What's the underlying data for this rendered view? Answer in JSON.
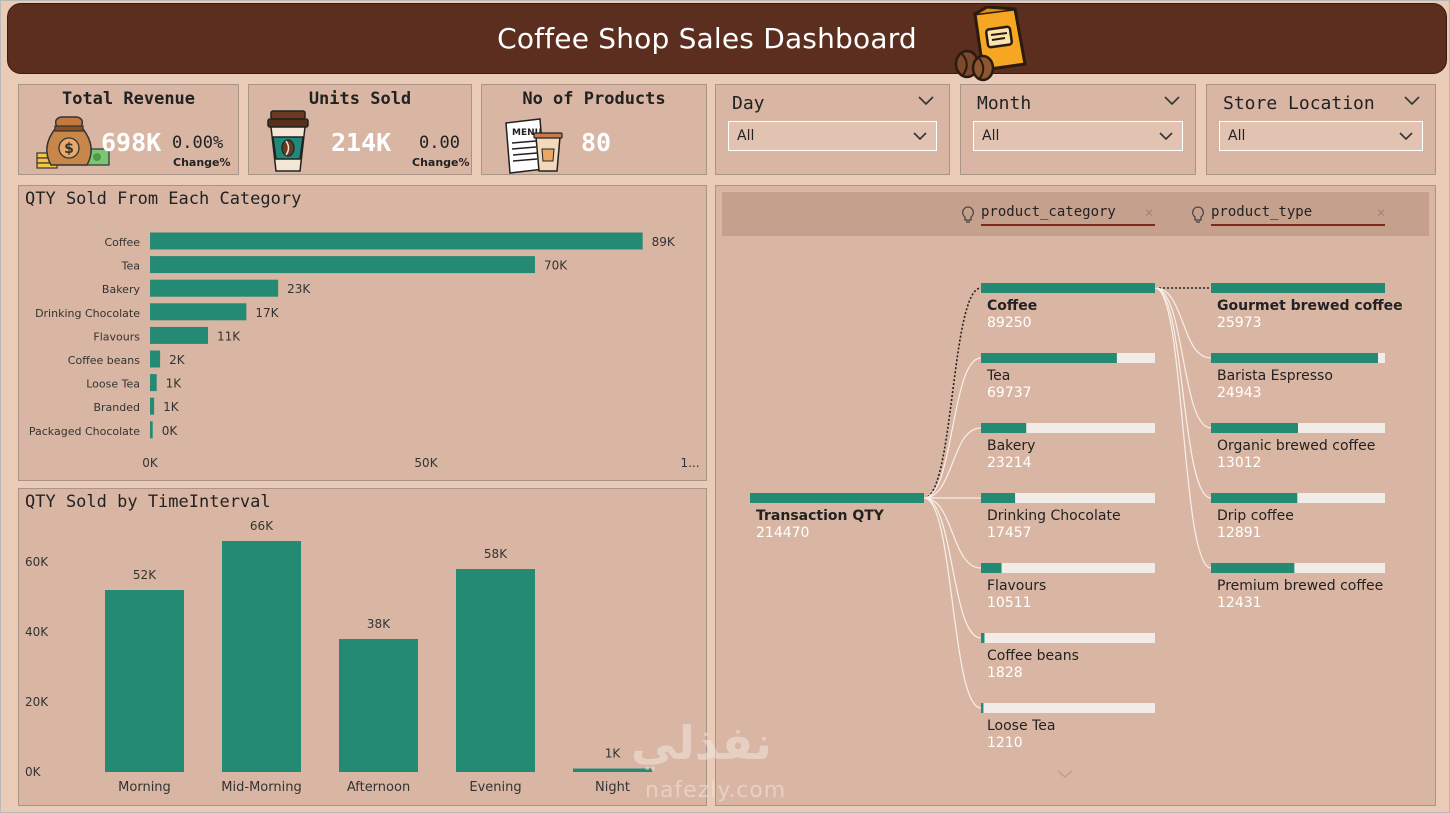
{
  "header": {
    "title": "Coffee Shop Sales Dashboard"
  },
  "colors": {
    "header_bg": "#5b2e1f",
    "bar": "#258a74",
    "panel": "#d9b6a3",
    "accent_orange": "#f5a623"
  },
  "kpis": [
    {
      "title": "Total Revenue",
      "value": "698K",
      "change": "0.00%",
      "change_label": "Change%",
      "icon": "money-bag-icon"
    },
    {
      "title": "Units Sold",
      "value": "214K",
      "change": "0.00",
      "change_label": "Change%",
      "icon": "coffee-cup-icon"
    },
    {
      "title": "No of Products",
      "value": "80",
      "icon": "menu-icon"
    }
  ],
  "slicers": [
    {
      "title": "Day",
      "selected": "All"
    },
    {
      "title": "Month",
      "selected": "All"
    },
    {
      "title": "Store Location",
      "selected": "All"
    }
  ],
  "category_chart": {
    "title": "QTY Sold From Each Category",
    "chart_data": {
      "type": "bar",
      "orientation": "horizontal",
      "categories": [
        "Coffee",
        "Tea",
        "Bakery",
        "Drinking Chocolate",
        "Flavours",
        "Coffee beans",
        "Loose Tea",
        "Branded",
        "Packaged Chocolate"
      ],
      "values": [
        89250,
        69737,
        23214,
        17457,
        10511,
        1828,
        1210,
        747,
        487
      ],
      "data_labels": [
        "89K",
        "70K",
        "23K",
        "17K",
        "11K",
        "2K",
        "1K",
        "1K",
        "0K"
      ],
      "x_ticks": [
        "0K",
        "50K",
        "1..."
      ],
      "xlim": [
        0,
        100000
      ]
    }
  },
  "time_chart": {
    "title": "QTY Sold by TimeInterval",
    "chart_data": {
      "type": "bar",
      "categories": [
        "Morning",
        "Mid-Morning",
        "Afternoon",
        "Evening",
        "Night"
      ],
      "values": [
        52000,
        66000,
        38000,
        58000,
        1000
      ],
      "data_labels": [
        "52K",
        "66K",
        "38K",
        "58K",
        "1K"
      ],
      "y_ticks": [
        "0K",
        "20K",
        "40K",
        "60K"
      ],
      "ylim": [
        0,
        66000
      ]
    }
  },
  "decomposition": {
    "fields": [
      "product_category",
      "product_type"
    ],
    "root": {
      "label": "Transaction QTY",
      "value": "214470"
    },
    "level1": [
      {
        "label": "Coffee",
        "value": "89250",
        "fraction": 1.0,
        "selected": true
      },
      {
        "label": "Tea",
        "value": "69737",
        "fraction": 0.781
      },
      {
        "label": "Bakery",
        "value": "23214",
        "fraction": 0.26
      },
      {
        "label": "Drinking Chocolate",
        "value": "17457",
        "fraction": 0.196
      },
      {
        "label": "Flavours",
        "value": "10511",
        "fraction": 0.118
      },
      {
        "label": "Coffee beans",
        "value": "1828",
        "fraction": 0.02
      },
      {
        "label": "Loose Tea",
        "value": "1210",
        "fraction": 0.014
      }
    ],
    "level2": [
      {
        "label": "Gourmet brewed coffee",
        "value": "25973",
        "fraction": 1.0,
        "bold": true
      },
      {
        "label": "Barista Espresso",
        "value": "24943",
        "fraction": 0.96
      },
      {
        "label": "Organic brewed coffee",
        "value": "13012",
        "fraction": 0.5
      },
      {
        "label": "Drip coffee",
        "value": "12891",
        "fraction": 0.496
      },
      {
        "label": "Premium brewed coffee",
        "value": "12431",
        "fraction": 0.479
      }
    ]
  },
  "watermark": {
    "arabic": "نفذلي",
    "latin": "nafezly.com"
  }
}
